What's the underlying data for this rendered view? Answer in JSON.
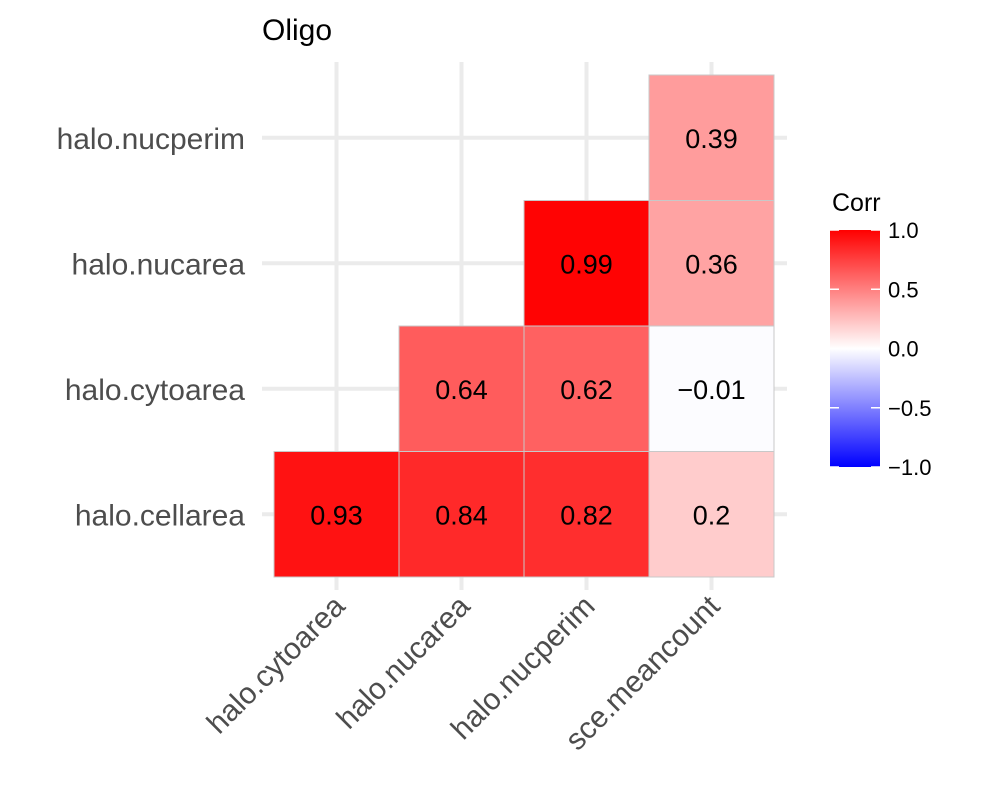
{
  "chart_data": {
    "type": "heatmap",
    "title": "Oligo",
    "x_categories": [
      "halo.cytoarea",
      "halo.nucarea",
      "halo.nucperim",
      "sce.meancount"
    ],
    "y_categories": [
      "halo.cellarea",
      "halo.cytoarea",
      "halo.nucarea",
      "halo.nucperim"
    ],
    "cells": [
      {
        "x": "halo.cytoarea",
        "y": "halo.cellarea",
        "value": 0.93,
        "label": "0.93"
      },
      {
        "x": "halo.nucarea",
        "y": "halo.cellarea",
        "value": 0.84,
        "label": "0.84"
      },
      {
        "x": "halo.nucperim",
        "y": "halo.cellarea",
        "value": 0.82,
        "label": "0.82"
      },
      {
        "x": "sce.meancount",
        "y": "halo.cellarea",
        "value": 0.2,
        "label": "0.2"
      },
      {
        "x": "halo.nucarea",
        "y": "halo.cytoarea",
        "value": 0.64,
        "label": "0.64"
      },
      {
        "x": "halo.nucperim",
        "y": "halo.cytoarea",
        "value": 0.62,
        "label": "0.62"
      },
      {
        "x": "sce.meancount",
        "y": "halo.cytoarea",
        "value": -0.01,
        "label": "−0.01"
      },
      {
        "x": "halo.nucperim",
        "y": "halo.nucarea",
        "value": 0.99,
        "label": "0.99"
      },
      {
        "x": "sce.meancount",
        "y": "halo.nucarea",
        "value": 0.36,
        "label": "0.36"
      },
      {
        "x": "sce.meancount",
        "y": "halo.nucperim",
        "value": 0.39,
        "label": "0.39"
      }
    ],
    "legend": {
      "title": "Corr",
      "range": [
        -1,
        1
      ],
      "ticks": [
        {
          "value": 1.0,
          "label": "1.0"
        },
        {
          "value": 0.5,
          "label": "0.5"
        },
        {
          "value": 0.0,
          "label": "0.0"
        },
        {
          "value": -0.5,
          "label": "−0.5"
        },
        {
          "value": -1.0,
          "label": "−1.0"
        }
      ],
      "colors": {
        "low": "#0000ff",
        "mid": "#ffffff",
        "high": "#ff0000"
      },
      "placement": "right"
    },
    "grid": true
  }
}
